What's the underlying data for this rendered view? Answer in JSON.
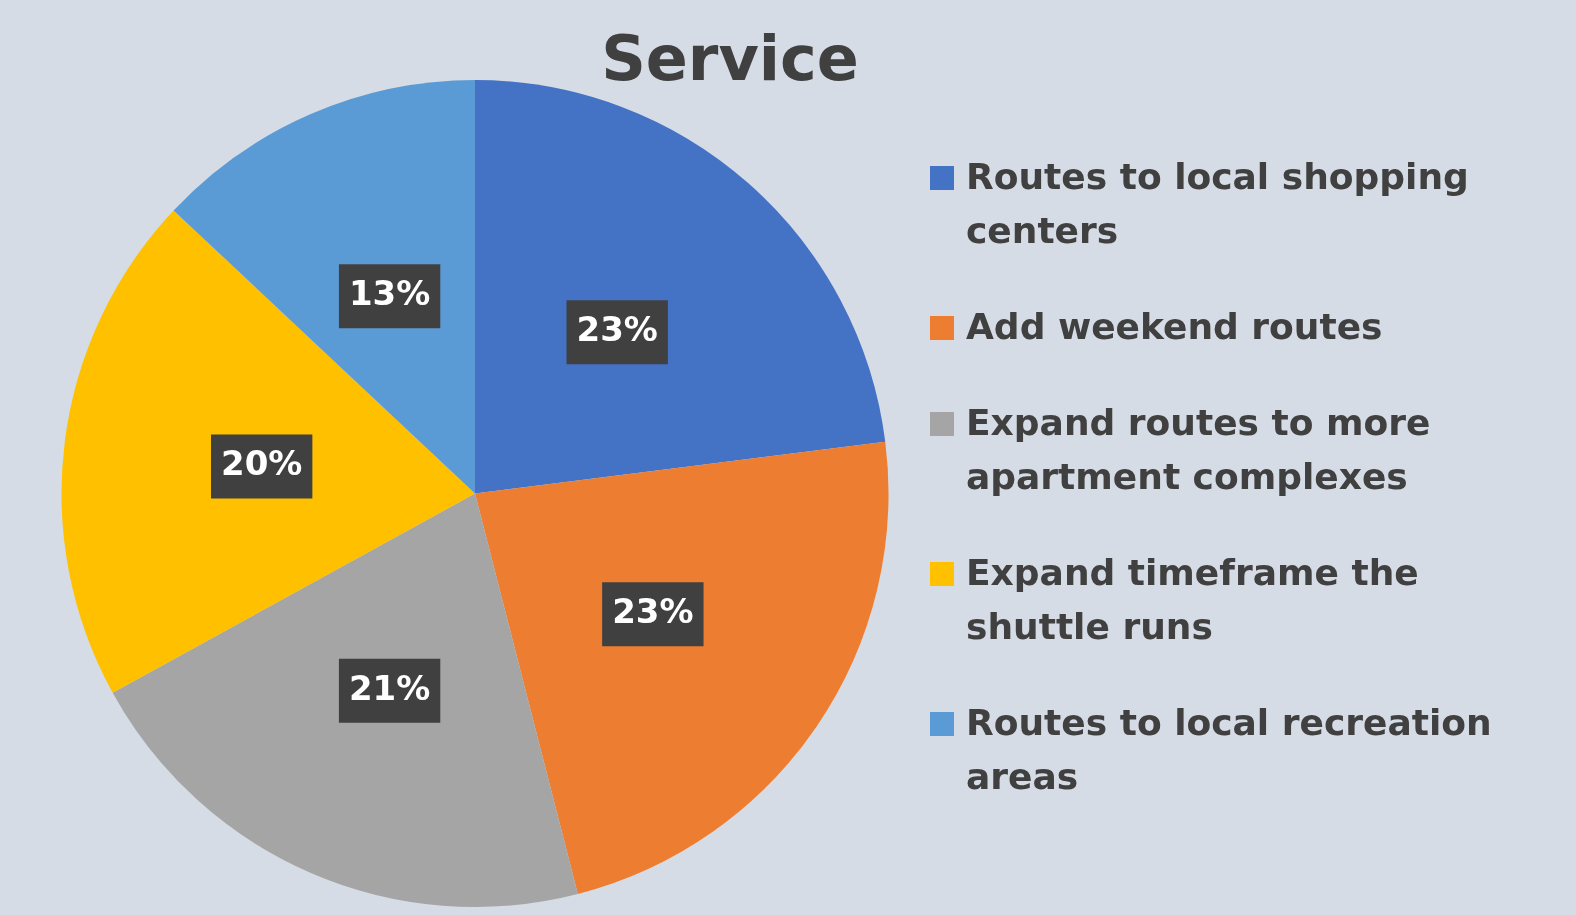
{
  "chart_data": {
    "type": "pie",
    "title": "Service",
    "categories": [
      "Routes to local shopping centers",
      "Add weekend routes",
      "Expand routes to more apartment complexes",
      "Expand timeframe the shuttle runs",
      "Routes to local recreation areas"
    ],
    "values": [
      23,
      23,
      21,
      20,
      13
    ],
    "colors": [
      "#4472c4",
      "#ed7d31",
      "#a5a5a5",
      "#ffc000",
      "#5b9bd5"
    ],
    "value_labels": [
      "23%",
      "23%",
      "21%",
      "20%",
      "13%"
    ],
    "legend": "right"
  }
}
